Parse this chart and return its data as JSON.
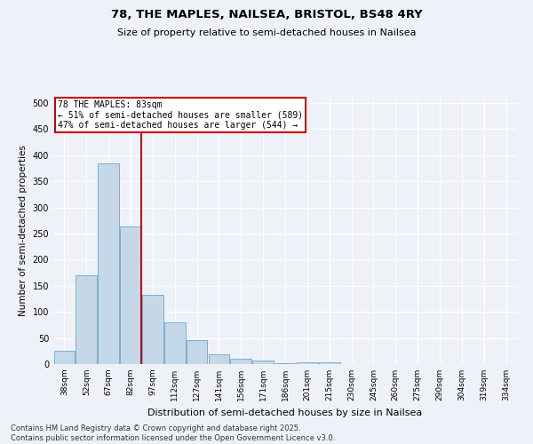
{
  "title1": "78, THE MAPLES, NAILSEA, BRISTOL, BS48 4RY",
  "title2": "Size of property relative to semi-detached houses in Nailsea",
  "xlabel": "Distribution of semi-detached houses by size in Nailsea",
  "ylabel": "Number of semi-detached properties",
  "categories": [
    "38sqm",
    "52sqm",
    "67sqm",
    "82sqm",
    "97sqm",
    "112sqm",
    "127sqm",
    "141sqm",
    "156sqm",
    "171sqm",
    "186sqm",
    "201sqm",
    "215sqm",
    "230sqm",
    "245sqm",
    "260sqm",
    "275sqm",
    "290sqm",
    "304sqm",
    "319sqm",
    "334sqm"
  ],
  "values": [
    25,
    170,
    385,
    263,
    133,
    80,
    46,
    18,
    10,
    7,
    2,
    4,
    3,
    0,
    0,
    0,
    0,
    0,
    0,
    0,
    0
  ],
  "bar_color": "#c5d8e8",
  "bar_edge_color": "#7bafd4",
  "vline_color": "#cc0000",
  "annotation_title": "78 THE MAPLES: 83sqm",
  "annotation_line1": "← 51% of semi-detached houses are smaller (589)",
  "annotation_line2": "47% of semi-detached houses are larger (544) →",
  "annotation_box_color": "#cc0000",
  "bg_color": "#eef2f8",
  "grid_color": "#ffffff",
  "ylim": [
    0,
    510
  ],
  "footer1": "Contains HM Land Registry data © Crown copyright and database right 2025.",
  "footer2": "Contains public sector information licensed under the Open Government Licence v3.0."
}
